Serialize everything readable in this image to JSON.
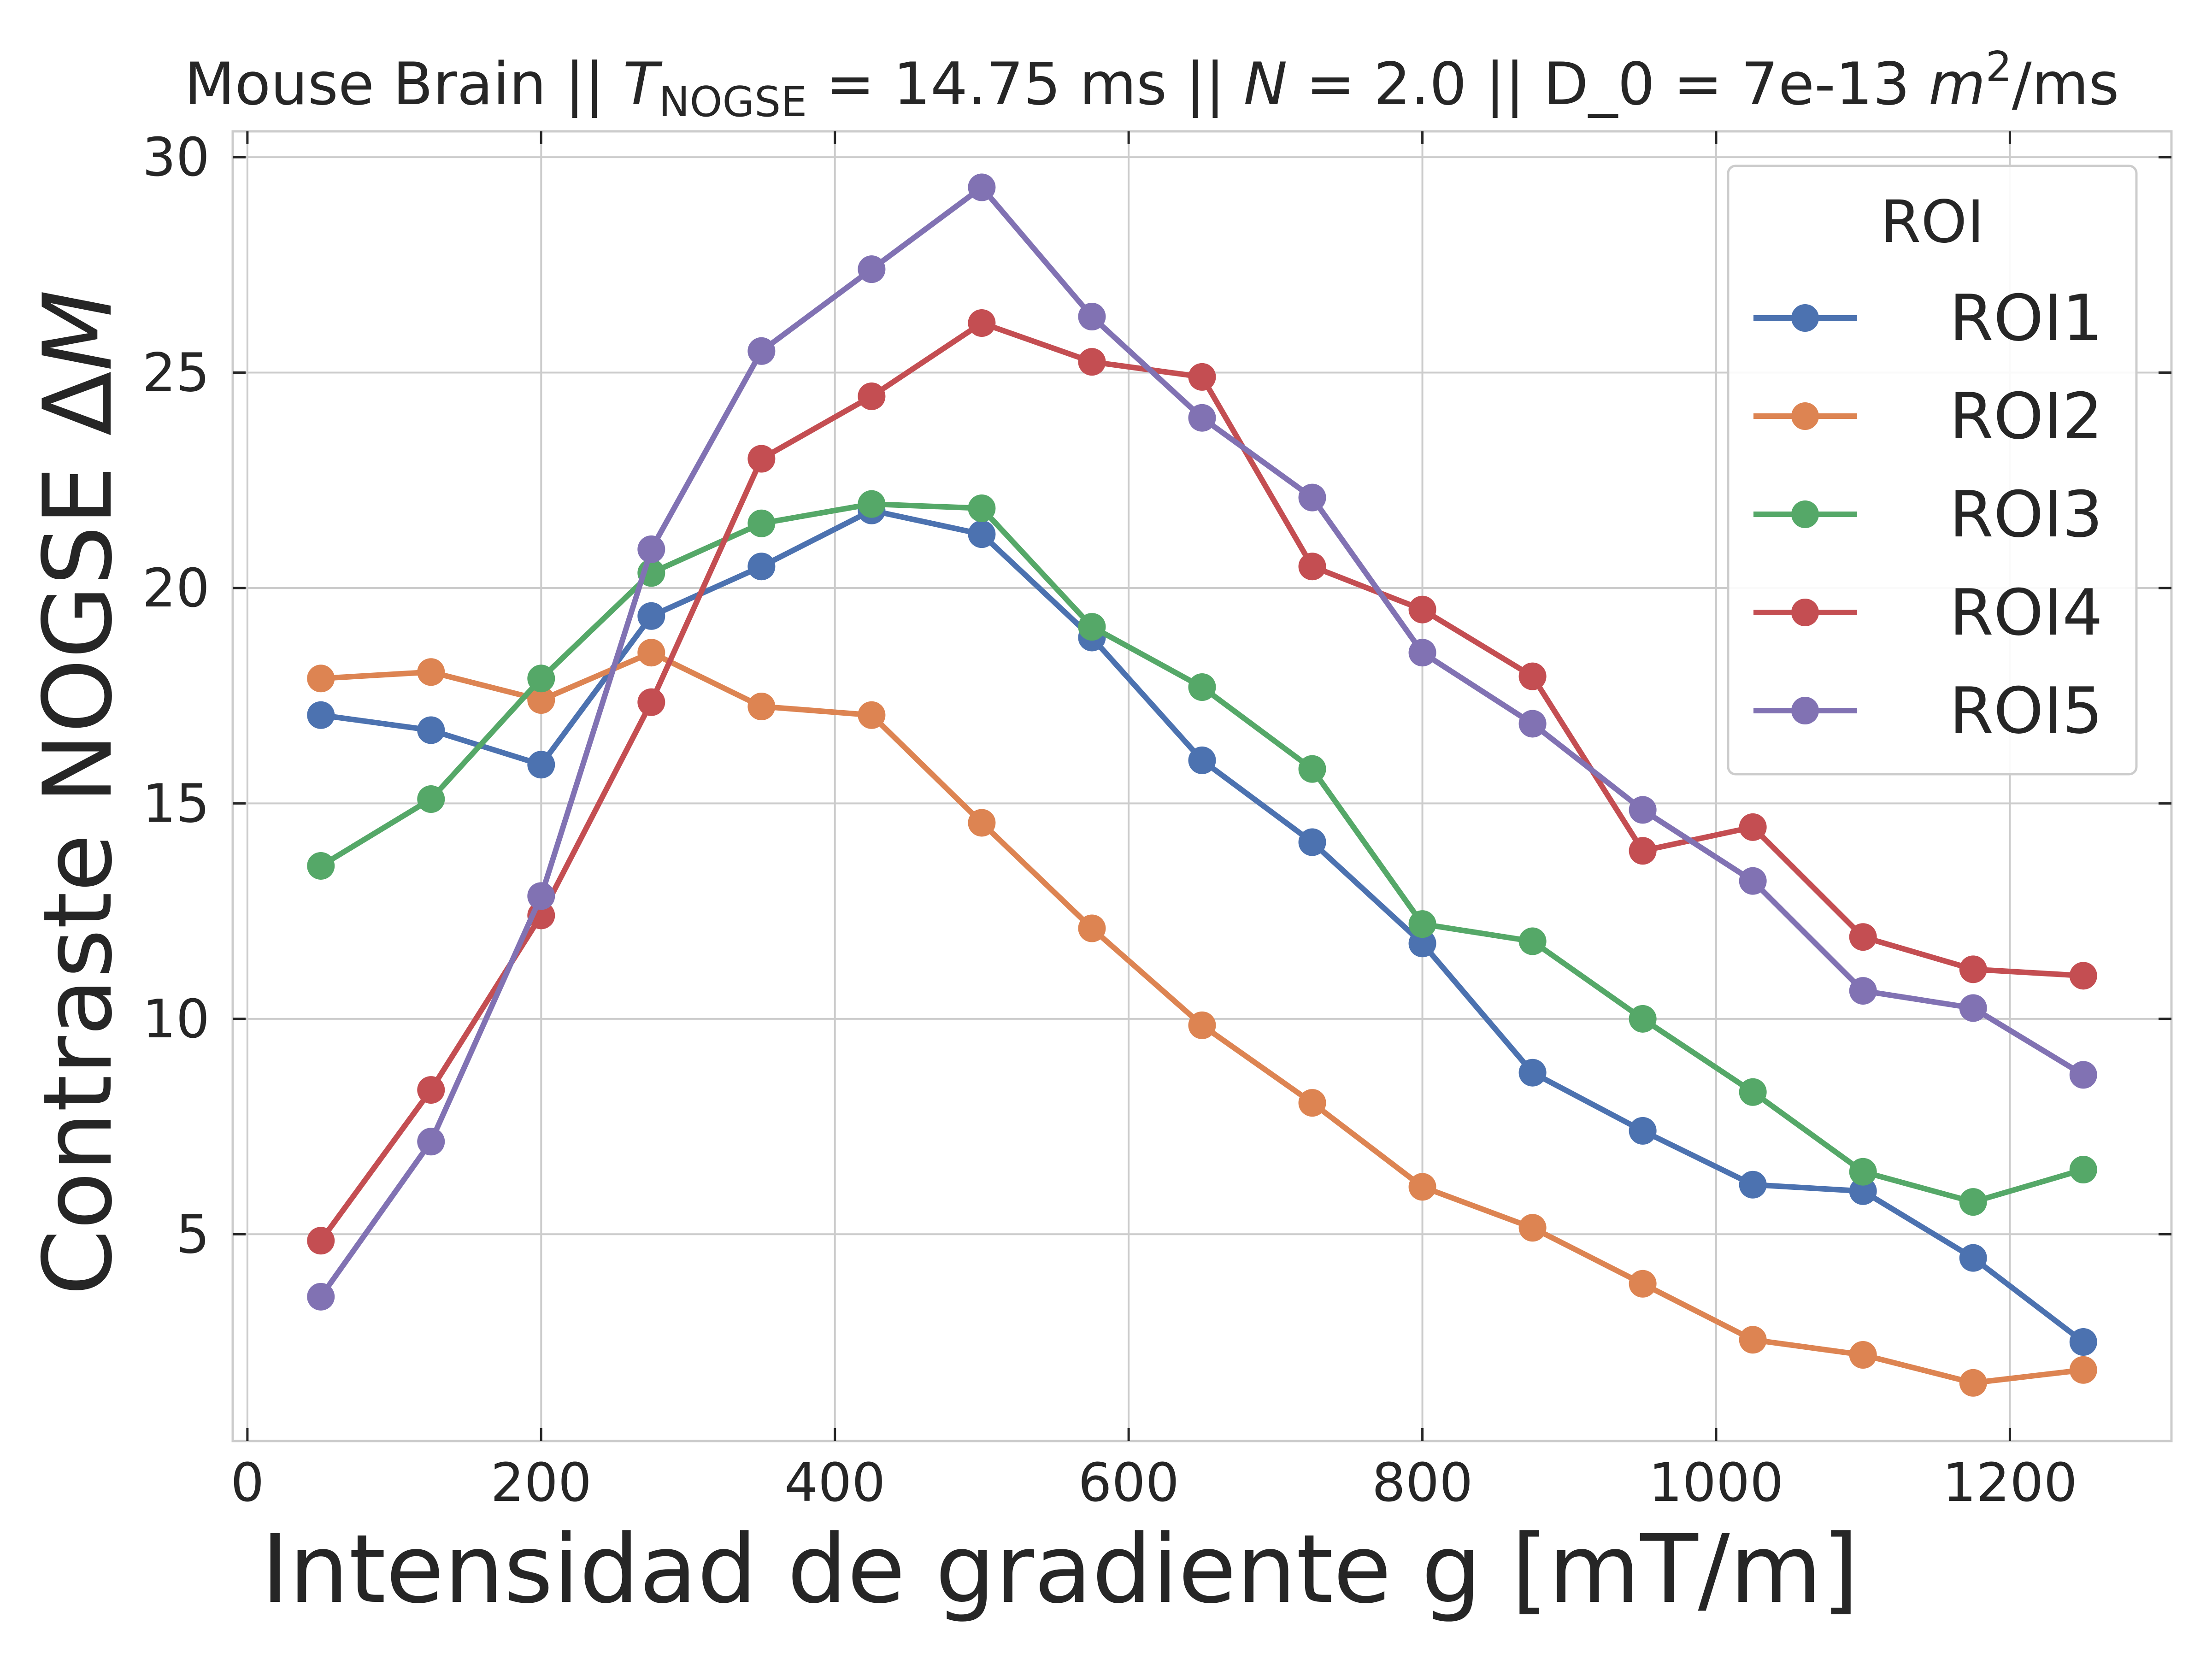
{
  "chart_data": {
    "type": "line",
    "title_parts": {
      "prefix": "Mouse Brain || ",
      "t_symbol": "T",
      "t_subscript": "NOGSE",
      "t_value": " = 14.75 ms || ",
      "n_symbol": "N",
      "n_value": " = 2.0 || D_0 = 7e-13 ",
      "unit_m": "m",
      "unit_exp": "2",
      "unit_rest": "/ms"
    },
    "xlabel": "Intensidad de gradiente g [mT/m]",
    "ylabel_text": "Contraste NOGSE Δ",
    "ylabel_italic": "M",
    "xlim": [
      -10,
      1310
    ],
    "ylim": [
      0.2,
      30.6
    ],
    "xticks": [
      0,
      200,
      400,
      600,
      800,
      1000,
      1200
    ],
    "yticks": [
      5,
      10,
      15,
      20,
      25,
      30
    ],
    "grid": true,
    "legend": {
      "title": "ROI",
      "position": "top-right"
    },
    "x": [
      50,
      125,
      200,
      275,
      350,
      425,
      500,
      575,
      650,
      725,
      800,
      875,
      950,
      1025,
      1100,
      1175,
      1250
    ],
    "series": [
      {
        "name": "ROI1",
        "color": "#4C72B0",
        "values": [
          17.05,
          16.7,
          15.9,
          19.35,
          20.5,
          21.8,
          21.25,
          18.85,
          16.0,
          14.1,
          11.75,
          8.75,
          7.4,
          6.15,
          6.0,
          4.45,
          2.5
        ]
      },
      {
        "name": "ROI2",
        "color": "#DD8452",
        "values": [
          17.9,
          18.05,
          17.4,
          18.5,
          17.25,
          17.05,
          14.55,
          12.1,
          9.85,
          8.05,
          6.1,
          5.15,
          3.85,
          2.55,
          2.2,
          1.55,
          1.85
        ]
      },
      {
        "name": "ROI3",
        "color": "#55A868",
        "values": [
          13.55,
          15.1,
          17.9,
          20.35,
          21.5,
          21.95,
          21.85,
          19.1,
          17.7,
          15.8,
          12.2,
          11.8,
          10.0,
          8.3,
          6.45,
          5.75,
          6.5
        ]
      },
      {
        "name": "ROI4",
        "color": "#C44E52",
        "values": [
          4.85,
          8.35,
          12.4,
          17.35,
          23.0,
          24.45,
          26.15,
          25.25,
          24.9,
          20.5,
          19.5,
          17.95,
          13.9,
          14.45,
          11.9,
          11.15,
          11.0
        ]
      },
      {
        "name": "ROI5",
        "color": "#8172B3",
        "values": [
          3.55,
          7.15,
          12.85,
          20.9,
          25.5,
          27.4,
          29.3,
          26.3,
          23.95,
          22.1,
          18.5,
          16.85,
          14.85,
          13.2,
          10.65,
          10.25,
          8.7
        ]
      }
    ]
  }
}
